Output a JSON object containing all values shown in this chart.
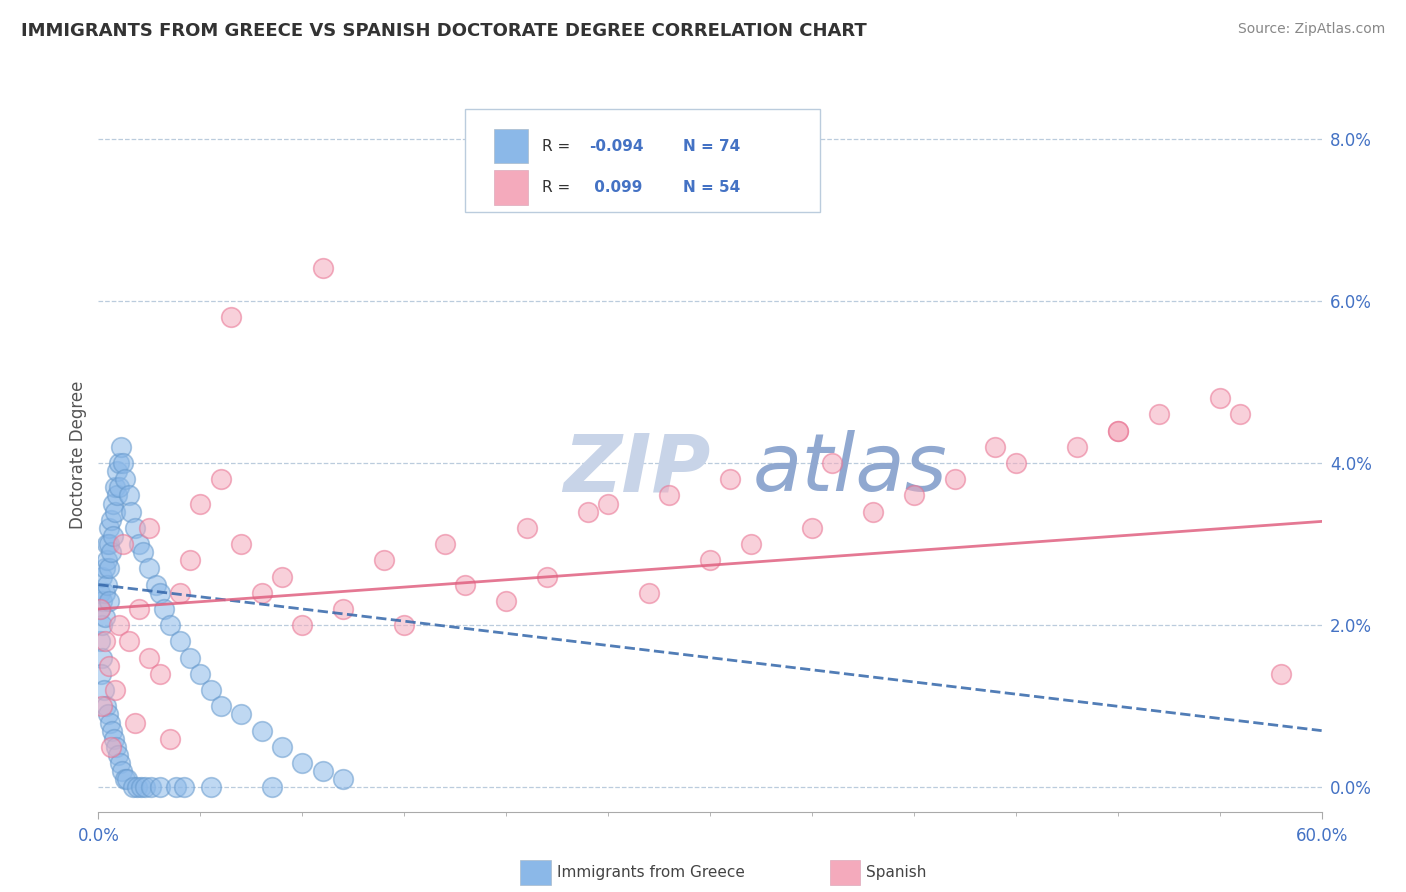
{
  "title": "IMMIGRANTS FROM GREECE VS SPANISH DOCTORATE DEGREE CORRELATION CHART",
  "source": "Source: ZipAtlas.com",
  "ylabel": "Doctorate Degree",
  "xlim": [
    0.0,
    60.0
  ],
  "ylim": [
    -0.3,
    8.5
  ],
  "ytick_vals": [
    0,
    2,
    4,
    6,
    8
  ],
  "blue_color": "#8BB8E8",
  "blue_edge_color": "#6699CC",
  "pink_color": "#F4AABC",
  "pink_edge_color": "#E87090",
  "blue_line_color": "#3366AA",
  "pink_line_color": "#E06080",
  "background_color": "#FFFFFF",
  "grid_color": "#BBCCDD",
  "title_color": "#333333",
  "axis_color": "#4472C4",
  "watermark_zip_color": "#C8D4E8",
  "watermark_atlas_color": "#90A8D0",
  "blue_x": [
    0.1,
    0.1,
    0.1,
    0.2,
    0.2,
    0.2,
    0.2,
    0.3,
    0.3,
    0.3,
    0.4,
    0.4,
    0.4,
    0.5,
    0.5,
    0.5,
    0.5,
    0.6,
    0.6,
    0.7,
    0.7,
    0.8,
    0.8,
    0.9,
    0.9,
    1.0,
    1.0,
    1.1,
    1.2,
    1.3,
    1.5,
    1.6,
    1.8,
    2.0,
    2.2,
    2.5,
    2.8,
    3.0,
    3.2,
    3.5,
    4.0,
    4.5,
    5.0,
    5.5,
    6.0,
    7.0,
    8.0,
    9.0,
    10.0,
    11.0,
    12.0,
    0.15,
    0.25,
    0.35,
    0.45,
    0.55,
    0.65,
    0.75,
    0.85,
    0.95,
    1.05,
    1.15,
    1.3,
    1.4,
    1.7,
    1.9,
    2.1,
    2.3,
    2.6,
    3.0,
    3.8,
    4.2,
    5.5,
    8.5
  ],
  "blue_y": [
    2.4,
    2.2,
    1.8,
    2.6,
    2.3,
    2.0,
    1.6,
    2.7,
    2.4,
    2.1,
    3.0,
    2.8,
    2.5,
    3.2,
    3.0,
    2.7,
    2.3,
    3.3,
    2.9,
    3.5,
    3.1,
    3.7,
    3.4,
    3.9,
    3.6,
    4.0,
    3.7,
    4.2,
    4.0,
    3.8,
    3.6,
    3.4,
    3.2,
    3.0,
    2.9,
    2.7,
    2.5,
    2.4,
    2.2,
    2.0,
    1.8,
    1.6,
    1.4,
    1.2,
    1.0,
    0.9,
    0.7,
    0.5,
    0.3,
    0.2,
    0.1,
    1.4,
    1.2,
    1.0,
    0.9,
    0.8,
    0.7,
    0.6,
    0.5,
    0.4,
    0.3,
    0.2,
    0.1,
    0.1,
    0.0,
    0.0,
    0.0,
    0.0,
    0.0,
    0.0,
    0.0,
    0.0,
    0.0,
    0.0
  ],
  "pink_x": [
    0.1,
    0.3,
    0.5,
    0.8,
    1.0,
    1.5,
    2.0,
    2.5,
    3.0,
    4.0,
    5.0,
    6.0,
    8.0,
    10.0,
    12.0,
    15.0,
    18.0,
    20.0,
    22.0,
    25.0,
    27.0,
    30.0,
    32.0,
    35.0,
    38.0,
    40.0,
    42.0,
    45.0,
    48.0,
    50.0,
    52.0,
    55.0,
    58.0,
    1.2,
    2.5,
    4.5,
    7.0,
    9.0,
    14.0,
    17.0,
    21.0,
    24.0,
    28.0,
    31.0,
    36.0,
    44.0,
    50.0,
    56.0,
    0.2,
    0.6,
    1.8,
    3.5,
    6.5,
    11.0
  ],
  "pink_y": [
    2.2,
    1.8,
    1.5,
    1.2,
    2.0,
    1.8,
    2.2,
    1.6,
    1.4,
    2.4,
    3.5,
    3.8,
    2.4,
    2.0,
    2.2,
    2.0,
    2.5,
    2.3,
    2.6,
    3.5,
    2.4,
    2.8,
    3.0,
    3.2,
    3.4,
    3.6,
    3.8,
    4.0,
    4.2,
    4.4,
    4.6,
    4.8,
    1.4,
    3.0,
    3.2,
    2.8,
    3.0,
    2.6,
    2.8,
    3.0,
    3.2,
    3.4,
    3.6,
    3.8,
    4.0,
    4.2,
    4.4,
    4.6,
    1.0,
    0.5,
    0.8,
    0.6,
    5.8,
    6.4
  ]
}
